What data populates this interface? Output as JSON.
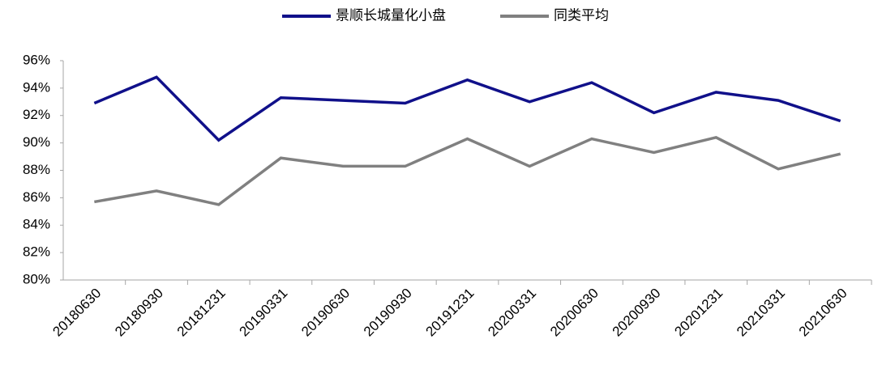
{
  "chart_data": {
    "type": "line",
    "categories": [
      "20180630",
      "20180930",
      "20181231",
      "20190331",
      "20190630",
      "20190930",
      "20191231",
      "20200331",
      "20200630",
      "20200930",
      "20201231",
      "20210331",
      "20210630"
    ],
    "series": [
      {
        "name": "景顺长城量化小盘",
        "color": "#10108a",
        "values": [
          92.9,
          94.8,
          90.2,
          93.3,
          93.1,
          92.9,
          94.6,
          93.0,
          94.4,
          92.2,
          93.7,
          93.1,
          91.6
        ]
      },
      {
        "name": "同类平均",
        "color": "#808080",
        "values": [
          85.7,
          86.5,
          85.5,
          88.9,
          88.3,
          88.3,
          90.3,
          88.3,
          90.3,
          89.3,
          90.4,
          88.1,
          89.2
        ]
      }
    ],
    "ylim": [
      80,
      96
    ],
    "yticks": [
      {
        "value": 80,
        "label": "80%"
      },
      {
        "value": 82,
        "label": "82%"
      },
      {
        "value": 84,
        "label": "84%"
      },
      {
        "value": 86,
        "label": "86%"
      },
      {
        "value": 88,
        "label": "88%"
      },
      {
        "value": 90,
        "label": "90%"
      },
      {
        "value": 92,
        "label": "92%"
      },
      {
        "value": 94,
        "label": "94%"
      },
      {
        "value": 96,
        "label": "96%"
      }
    ],
    "grid": false,
    "legend": "top"
  }
}
